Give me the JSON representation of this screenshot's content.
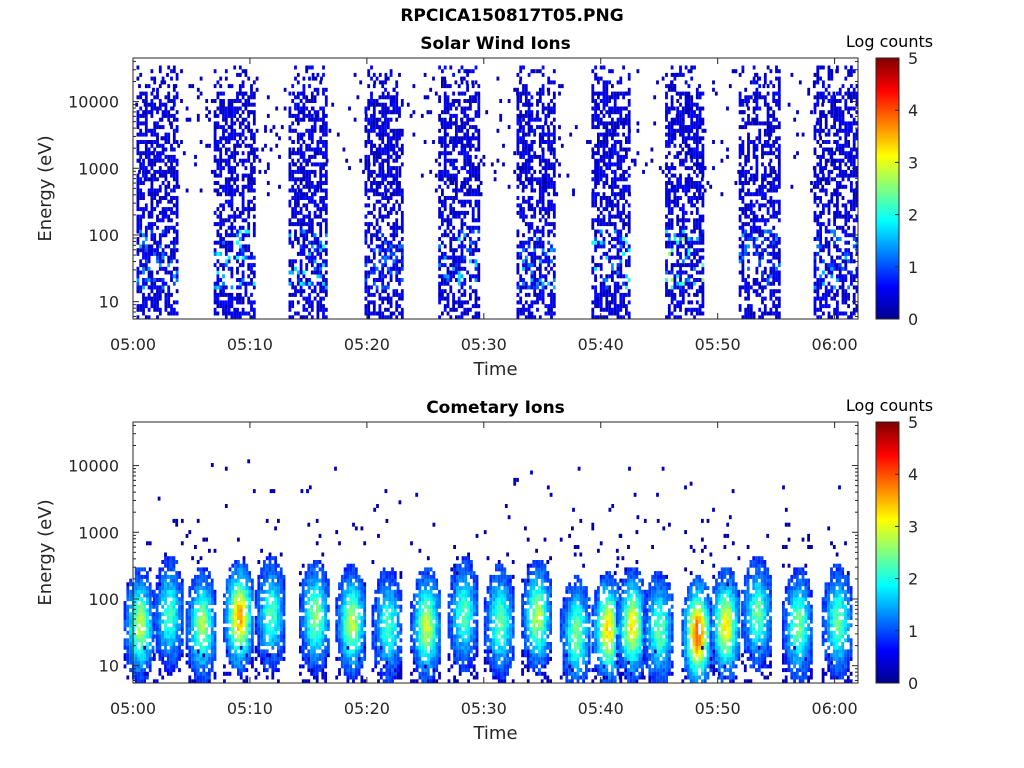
{
  "figure": {
    "title": "RPCICA150817T05.PNG"
  },
  "colormap": "jet",
  "chart_data": [
    {
      "type": "heatmap",
      "title": "Solar Wind Ions",
      "xlabel": "Time",
      "ylabel": "Energy (eV)",
      "xlim": [
        "05:00",
        "06:02"
      ],
      "x_ticks": [
        "05:00",
        "05:10",
        "05:20",
        "05:30",
        "05:40",
        "05:50",
        "06:00"
      ],
      "ylim": [
        5.5,
        45000
      ],
      "y_scale": "log",
      "y_ticks": [
        "10",
        "100",
        "1000",
        "10000"
      ],
      "colorbar": {
        "label": "Log counts",
        "range": [
          0,
          5
        ],
        "ticks": [
          "0",
          "1",
          "2",
          "3",
          "4",
          "5"
        ]
      },
      "bursts": [
        {
          "start": "05:00.3",
          "end": "05:03.8",
          "peak_log_counts": 1.5
        },
        {
          "start": "05:06.9",
          "end": "05:10.3",
          "peak_log_counts": 2.0
        },
        {
          "start": "05:13.3",
          "end": "05:16.6",
          "peak_log_counts": 1.9
        },
        {
          "start": "05:19.8",
          "end": "05:23.0",
          "peak_log_counts": 1.2
        },
        {
          "start": "05:26.1",
          "end": "05:29.5",
          "peak_log_counts": 1.8
        },
        {
          "start": "05:32.8",
          "end": "05:36.0",
          "peak_log_counts": 1.6
        },
        {
          "start": "05:39.2",
          "end": "05:42.5",
          "peak_log_counts": 2.1
        },
        {
          "start": "05:45.5",
          "end": "05:48.7",
          "peak_log_counts": 2.8
        },
        {
          "start": "05:51.8",
          "end": "05:55.2",
          "peak_log_counts": 1.5
        },
        {
          "start": "05:58.2",
          "end": "06:01.8",
          "peak_log_counts": 1.6
        }
      ]
    },
    {
      "type": "heatmap",
      "title": "Cometary Ions",
      "xlabel": "Time",
      "ylabel": "Energy (eV)",
      "xlim": [
        "05:00",
        "06:02"
      ],
      "x_ticks": [
        "05:00",
        "05:10",
        "05:20",
        "05:30",
        "05:40",
        "05:50",
        "06:00"
      ],
      "ylim": [
        5.5,
        45000
      ],
      "y_scale": "log",
      "y_ticks": [
        "10",
        "100",
        "1000",
        "10000"
      ],
      "colorbar": {
        "label": "Log counts",
        "range": [
          0,
          5
        ],
        "ticks": [
          "0",
          "1",
          "2",
          "3",
          "4",
          "5"
        ]
      },
      "bursts": [
        {
          "center": "05:00.5",
          "peak_energy_ev": 40,
          "peak_log_counts": 2.8
        },
        {
          "center": "05:03.0",
          "peak_energy_ev": 60,
          "peak_log_counts": 2.2
        },
        {
          "center": "05:05.8",
          "peak_energy_ev": 40,
          "peak_log_counts": 2.7
        },
        {
          "center": "05:09.0",
          "peak_energy_ev": 55,
          "peak_log_counts": 3.6
        },
        {
          "center": "05:11.7",
          "peak_energy_ev": 60,
          "peak_log_counts": 2.3
        },
        {
          "center": "05:15.5",
          "peak_energy_ev": 55,
          "peak_log_counts": 2.6
        },
        {
          "center": "05:18.6",
          "peak_energy_ev": 45,
          "peak_log_counts": 2.8
        },
        {
          "center": "05:21.7",
          "peak_energy_ev": 40,
          "peak_log_counts": 2.2
        },
        {
          "center": "05:25.0",
          "peak_energy_ev": 40,
          "peak_log_counts": 2.9
        },
        {
          "center": "05:28.2",
          "peak_energy_ev": 60,
          "peak_log_counts": 2.3
        },
        {
          "center": "05:31.3",
          "peak_energy_ev": 45,
          "peak_log_counts": 2.4
        },
        {
          "center": "05:34.5",
          "peak_energy_ev": 55,
          "peak_log_counts": 2.8
        },
        {
          "center": "05:37.8",
          "peak_energy_ev": 30,
          "peak_log_counts": 2.5
        },
        {
          "center": "05:40.5",
          "peak_energy_ev": 35,
          "peak_log_counts": 3.3
        },
        {
          "center": "05:42.6",
          "peak_energy_ev": 40,
          "peak_log_counts": 3.2
        },
        {
          "center": "05:44.9",
          "peak_energy_ev": 35,
          "peak_log_counts": 2.4
        },
        {
          "center": "05:48.2",
          "peak_energy_ev": 30,
          "peak_log_counts": 4.0
        },
        {
          "center": "05:50.6",
          "peak_energy_ev": 40,
          "peak_log_counts": 3.2
        },
        {
          "center": "05:53.3",
          "peak_energy_ev": 60,
          "peak_log_counts": 2.4
        },
        {
          "center": "05:56.8",
          "peak_energy_ev": 40,
          "peak_log_counts": 2.5
        },
        {
          "center": "06:00.2",
          "peak_energy_ev": 45,
          "peak_log_counts": 2.4
        }
      ]
    }
  ]
}
